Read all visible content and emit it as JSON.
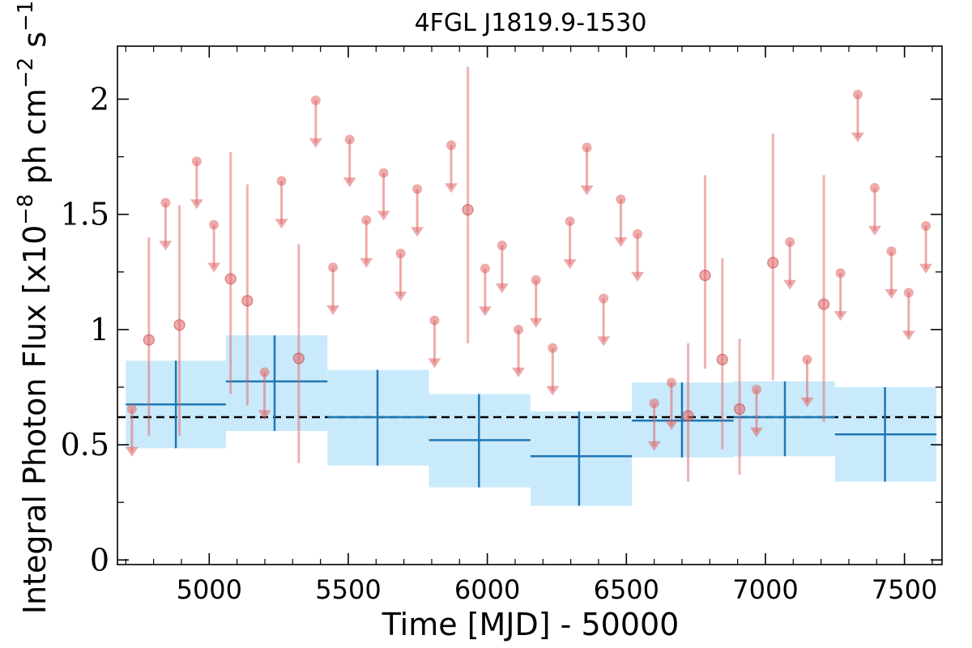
{
  "chart_data": {
    "type": "scatter",
    "title": "4FGL J1819.9-1530",
    "xlabel": "Time [MJD] - 50000",
    "ylabel_main": "Integral Photon Flux [x10",
    "ylabel_exp1": "−8",
    "ylabel_mid": " ph cm",
    "ylabel_exp2": "−2",
    "ylabel_mid2": " s",
    "ylabel_exp3": "−1",
    "ylabel_end": "]",
    "xlim": [
      4670,
      7635
    ],
    "ylim": [
      -0.02,
      2.23
    ],
    "x_ticks": [
      5000,
      5500,
      6000,
      6500,
      7000,
      7500
    ],
    "x_tick_labels": [
      "5000",
      "5500",
      "6000",
      "6500",
      "7000",
      "7500"
    ],
    "y_ticks": [
      0,
      0.5,
      1,
      1.5,
      2
    ],
    "y_tick_labels": [
      "0",
      "0.5",
      "1",
      "1.5",
      "2"
    ],
    "y_minor_ticks": [
      0.25,
      0.75,
      1.25,
      1.75
    ],
    "reference_line": {
      "y": 0.62,
      "style": "dashed",
      "color": "#000000"
    },
    "colors": {
      "short_bins": "#e06666",
      "long_bins": "#1f77b4",
      "band": "#c9eafb"
    },
    "series": [
      {
        "bin": "short",
        "detections": [
          {
            "x": 4783,
            "y": 0.955,
            "ylo": 0.54,
            "yhi": 1.4
          },
          {
            "x": 4893,
            "y": 1.02,
            "ylo": 0.54,
            "yhi": 1.54
          },
          {
            "x": 5077,
            "y": 1.22,
            "ylo": 0.72,
            "yhi": 1.77
          },
          {
            "x": 5137,
            "y": 1.125,
            "ylo": 0.67,
            "yhi": 1.63
          },
          {
            "x": 5322,
            "y": 0.875,
            "ylo": 0.42,
            "yhi": 1.37
          },
          {
            "x": 5930,
            "y": 1.52,
            "ylo": 0.94,
            "yhi": 2.14
          },
          {
            "x": 6722,
            "y": 0.625,
            "ylo": 0.34,
            "yhi": 0.94
          },
          {
            "x": 6783,
            "y": 1.235,
            "ylo": 0.83,
            "yhi": 1.67
          },
          {
            "x": 6845,
            "y": 0.87,
            "ylo": 0.48,
            "yhi": 1.31
          },
          {
            "x": 6907,
            "y": 0.655,
            "ylo": 0.37,
            "yhi": 0.96
          },
          {
            "x": 7027,
            "y": 1.29,
            "ylo": 0.78,
            "yhi": 1.85
          },
          {
            "x": 7210,
            "y": 1.11,
            "ylo": 0.6,
            "yhi": 1.67
          }
        ],
        "upper_limits": [
          {
            "x": 4722,
            "y": 0.655
          },
          {
            "x": 4843,
            "y": 1.55
          },
          {
            "x": 4955,
            "y": 1.73
          },
          {
            "x": 5017,
            "y": 1.455
          },
          {
            "x": 5199,
            "y": 0.815
          },
          {
            "x": 5260,
            "y": 1.645
          },
          {
            "x": 5383,
            "y": 1.995
          },
          {
            "x": 5445,
            "y": 1.27
          },
          {
            "x": 5505,
            "y": 1.825
          },
          {
            "x": 5565,
            "y": 1.475
          },
          {
            "x": 5627,
            "y": 1.68
          },
          {
            "x": 5688,
            "y": 1.33
          },
          {
            "x": 5748,
            "y": 1.61
          },
          {
            "x": 5810,
            "y": 1.04
          },
          {
            "x": 5870,
            "y": 1.8
          },
          {
            "x": 5992,
            "y": 1.265
          },
          {
            "x": 6053,
            "y": 1.365
          },
          {
            "x": 6112,
            "y": 1.0
          },
          {
            "x": 6175,
            "y": 1.215
          },
          {
            "x": 6235,
            "y": 0.92
          },
          {
            "x": 6297,
            "y": 1.47
          },
          {
            "x": 6358,
            "y": 1.79
          },
          {
            "x": 6418,
            "y": 1.135
          },
          {
            "x": 6480,
            "y": 1.565
          },
          {
            "x": 6540,
            "y": 1.415
          },
          {
            "x": 6600,
            "y": 0.68
          },
          {
            "x": 6662,
            "y": 0.77
          },
          {
            "x": 6968,
            "y": 0.74
          },
          {
            "x": 7088,
            "y": 1.38
          },
          {
            "x": 7150,
            "y": 0.87
          },
          {
            "x": 7270,
            "y": 1.245
          },
          {
            "x": 7332,
            "y": 2.02
          },
          {
            "x": 7393,
            "y": 1.615
          },
          {
            "x": 7453,
            "y": 1.34
          },
          {
            "x": 7515,
            "y": 1.16
          },
          {
            "x": 7577,
            "y": 1.45
          }
        ]
      },
      {
        "bin": "long",
        "points": [
          {
            "x0": 4700,
            "x1": 5060,
            "x": 4880,
            "y": 0.675,
            "ylo": 0.485,
            "yhi": 0.865
          },
          {
            "x0": 5060,
            "x1": 5425,
            "x": 5235,
            "y": 0.775,
            "ylo": 0.56,
            "yhi": 0.975
          },
          {
            "x0": 5425,
            "x1": 5790,
            "x": 5605,
            "y": 0.62,
            "ylo": 0.41,
            "yhi": 0.825
          },
          {
            "x0": 5790,
            "x1": 6155,
            "x": 5970,
            "y": 0.52,
            "ylo": 0.315,
            "yhi": 0.72
          },
          {
            "x0": 6155,
            "x1": 6520,
            "x": 6330,
            "y": 0.45,
            "ylo": 0.235,
            "yhi": 0.645
          },
          {
            "x0": 6520,
            "x1": 6885,
            "x": 6700,
            "y": 0.605,
            "ylo": 0.445,
            "yhi": 0.77
          },
          {
            "x0": 6885,
            "x1": 7250,
            "x": 7070,
            "y": 0.62,
            "ylo": 0.45,
            "yhi": 0.775
          },
          {
            "x0": 7250,
            "x1": 7615,
            "x": 7430,
            "y": 0.545,
            "ylo": 0.34,
            "yhi": 0.75
          }
        ]
      }
    ]
  }
}
